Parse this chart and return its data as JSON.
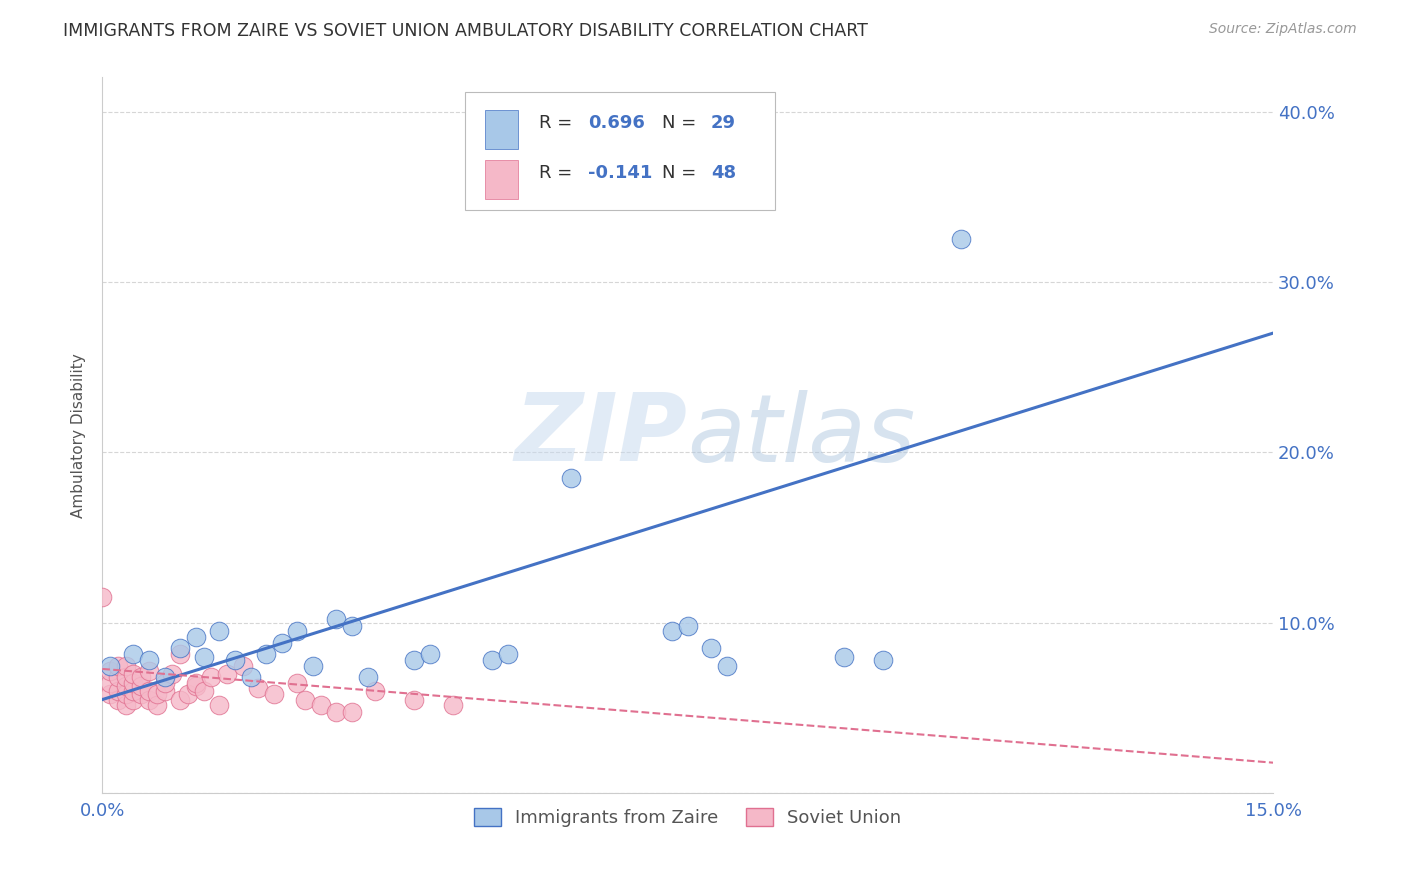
{
  "title": "IMMIGRANTS FROM ZAIRE VS SOVIET UNION AMBULATORY DISABILITY CORRELATION CHART",
  "source": "Source: ZipAtlas.com",
  "tick_color": "#4472c4",
  "ylabel": "Ambulatory Disability",
  "xlim": [
    0.0,
    0.15
  ],
  "ylim": [
    0.0,
    0.42
  ],
  "x_ticks": [
    0.0,
    0.03,
    0.06,
    0.09,
    0.12,
    0.15
  ],
  "y_ticks": [
    0.0,
    0.1,
    0.2,
    0.3,
    0.4
  ],
  "y_tick_labels_right": [
    "",
    "10.0%",
    "20.0%",
    "30.0%",
    "40.0%"
  ],
  "x_tick_labels": [
    "0.0%",
    "",
    "",
    "",
    "",
    "15.0%"
  ],
  "grid_color": "#cccccc",
  "background_color": "#ffffff",
  "zaire_color": "#a8c8e8",
  "soviet_color": "#f5b8c8",
  "zaire_edge_color": "#4472c4",
  "soviet_edge_color": "#e07090",
  "zaire_line_color": "#4472c4",
  "soviet_line_color": "#e07090",
  "zaire_R": "0.696",
  "zaire_N": "29",
  "soviet_R": "-0.141",
  "soviet_N": "48",
  "legend_label_zaire": "Immigrants from Zaire",
  "legend_label_soviet": "Soviet Union",
  "watermark_zip": "ZIP",
  "watermark_atlas": "atlas",
  "zaire_points": [
    [
      0.001,
      0.075
    ],
    [
      0.004,
      0.082
    ],
    [
      0.006,
      0.078
    ],
    [
      0.008,
      0.068
    ],
    [
      0.01,
      0.085
    ],
    [
      0.012,
      0.092
    ],
    [
      0.013,
      0.08
    ],
    [
      0.015,
      0.095
    ],
    [
      0.017,
      0.078
    ],
    [
      0.019,
      0.068
    ],
    [
      0.021,
      0.082
    ],
    [
      0.023,
      0.088
    ],
    [
      0.025,
      0.095
    ],
    [
      0.027,
      0.075
    ],
    [
      0.03,
      0.102
    ],
    [
      0.032,
      0.098
    ],
    [
      0.034,
      0.068
    ],
    [
      0.04,
      0.078
    ],
    [
      0.042,
      0.082
    ],
    [
      0.05,
      0.078
    ],
    [
      0.052,
      0.082
    ],
    [
      0.06,
      0.185
    ],
    [
      0.073,
      0.095
    ],
    [
      0.075,
      0.098
    ],
    [
      0.078,
      0.085
    ],
    [
      0.08,
      0.075
    ],
    [
      0.095,
      0.08
    ],
    [
      0.1,
      0.078
    ],
    [
      0.11,
      0.325
    ]
  ],
  "soviet_points": [
    [
      0.0,
      0.115
    ],
    [
      0.001,
      0.058
    ],
    [
      0.001,
      0.065
    ],
    [
      0.001,
      0.072
    ],
    [
      0.002,
      0.055
    ],
    [
      0.002,
      0.06
    ],
    [
      0.002,
      0.068
    ],
    [
      0.002,
      0.075
    ],
    [
      0.003,
      0.052
    ],
    [
      0.003,
      0.058
    ],
    [
      0.003,
      0.063
    ],
    [
      0.003,
      0.068
    ],
    [
      0.003,
      0.075
    ],
    [
      0.004,
      0.055
    ],
    [
      0.004,
      0.06
    ],
    [
      0.004,
      0.065
    ],
    [
      0.004,
      0.07
    ],
    [
      0.005,
      0.058
    ],
    [
      0.005,
      0.063
    ],
    [
      0.005,
      0.068
    ],
    [
      0.006,
      0.055
    ],
    [
      0.006,
      0.06
    ],
    [
      0.006,
      0.072
    ],
    [
      0.007,
      0.052
    ],
    [
      0.007,
      0.058
    ],
    [
      0.008,
      0.06
    ],
    [
      0.008,
      0.065
    ],
    [
      0.009,
      0.07
    ],
    [
      0.01,
      0.055
    ],
    [
      0.01,
      0.082
    ],
    [
      0.011,
      0.058
    ],
    [
      0.012,
      0.063
    ],
    [
      0.012,
      0.065
    ],
    [
      0.013,
      0.06
    ],
    [
      0.014,
      0.068
    ],
    [
      0.015,
      0.052
    ],
    [
      0.016,
      0.07
    ],
    [
      0.018,
      0.075
    ],
    [
      0.02,
      0.062
    ],
    [
      0.022,
      0.058
    ],
    [
      0.025,
      0.065
    ],
    [
      0.026,
      0.055
    ],
    [
      0.028,
      0.052
    ],
    [
      0.03,
      0.048
    ],
    [
      0.032,
      0.048
    ],
    [
      0.035,
      0.06
    ],
    [
      0.04,
      0.055
    ],
    [
      0.045,
      0.052
    ]
  ],
  "zaire_trend_x": [
    0.0,
    0.15
  ],
  "zaire_trend_y": [
    0.055,
    0.27
  ],
  "soviet_trend_x": [
    0.0,
    0.15
  ],
  "soviet_trend_y": [
    0.073,
    0.018
  ]
}
